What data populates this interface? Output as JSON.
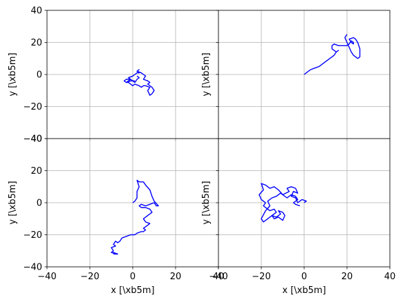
{
  "chart_data": [
    {
      "type": "line",
      "position": "top-left",
      "xlabel": "",
      "ylabel": "y [\\xb5m]",
      "xlim": [
        -40,
        40
      ],
      "ylim": [
        -40,
        40
      ],
      "yticks": [
        "−40",
        "−20",
        "0",
        "20",
        "40"
      ],
      "grid": true,
      "series": [
        {
          "color": "#0000ff",
          "x": [
            1,
            -1,
            -3,
            -1,
            -2,
            0,
            1,
            2,
            3,
            2,
            3,
            2,
            4,
            5,
            6,
            5,
            7,
            8,
            7,
            8,
            9,
            10,
            9,
            8,
            7,
            8,
            6,
            5,
            4,
            3,
            1,
            0,
            -1,
            -2,
            -3,
            -4,
            -3,
            -1,
            0,
            1,
            2,
            3,
            2
          ],
          "y": [
            -4,
            -4,
            -5,
            -3,
            -2,
            -1,
            0,
            1,
            1,
            2,
            3,
            2,
            1,
            0,
            -1,
            -3,
            -4,
            -5,
            -6,
            -7,
            -8,
            -10,
            -12,
            -13,
            -10,
            -8,
            -7,
            -7,
            -8,
            -7,
            -6,
            -7,
            -6,
            -5,
            -5,
            -4,
            -3,
            -3,
            -4,
            -5,
            -3,
            -2,
            -1
          ]
        }
      ]
    },
    {
      "type": "line",
      "position": "top-right",
      "xlabel": "",
      "ylabel": "y [\\xb5m]",
      "xlim": [
        -40,
        40
      ],
      "ylim": [
        -40,
        40
      ],
      "grid": true,
      "series": [
        {
          "color": "#0000ff",
          "x": [
            0,
            1,
            2,
            3,
            5,
            7,
            9,
            11,
            13,
            14,
            15,
            16,
            15,
            14,
            13,
            13,
            14,
            16,
            18,
            20,
            21,
            22,
            23,
            23,
            22,
            21,
            23,
            24,
            25,
            26,
            26,
            25,
            24,
            23,
            22,
            21,
            20,
            19,
            20
          ],
          "y": [
            0,
            1,
            2,
            3,
            4,
            5,
            7,
            9,
            11,
            12,
            14,
            15,
            14,
            15,
            16,
            18,
            19,
            18,
            18,
            18,
            19,
            21,
            20,
            19,
            20,
            22,
            23,
            22,
            20,
            16,
            11,
            10,
            11,
            12,
            14,
            17,
            20,
            23,
            25
          ]
        }
      ]
    },
    {
      "type": "line",
      "position": "bottom-left",
      "xlabel": "x [\\xb5m]",
      "ylabel": "y [\\xb5m]",
      "xlim": [
        -40,
        40
      ],
      "ylim": [
        -40,
        40
      ],
      "xticks": [
        "−40",
        "−20",
        "0",
        "20",
        "40"
      ],
      "yticks": [
        "−40",
        "−20",
        "0",
        "20",
        "40"
      ],
      "grid": true,
      "series": [
        {
          "color": "#0000ff",
          "x": [
            0,
            1,
            2,
            2,
            3,
            2,
            3,
            5,
            6,
            8,
            9,
            10,
            12,
            11,
            10,
            8,
            6,
            4,
            3,
            4,
            6,
            8,
            9,
            7,
            5,
            6,
            8,
            7,
            5,
            6,
            5,
            4,
            2,
            1,
            -1,
            -3,
            -5,
            -6,
            -7,
            -8,
            -9,
            -8,
            -10,
            -9,
            -10,
            -8,
            -9,
            -7,
            -9
          ],
          "y": [
            0,
            1,
            3,
            7,
            10,
            14,
            13,
            13,
            11,
            8,
            4,
            1,
            -2,
            -2,
            0,
            -1,
            -2,
            -1,
            -2,
            -3,
            -3,
            -4,
            -6,
            -8,
            -10,
            -12,
            -13,
            -14,
            -16,
            -17,
            -18,
            -18,
            -19,
            -20,
            -20,
            -21,
            -22,
            -24,
            -25,
            -24,
            -26,
            -27,
            -28,
            -30,
            -31,
            -32,
            -31,
            -32,
            -32
          ]
        }
      ]
    },
    {
      "type": "line",
      "position": "bottom-right",
      "xlabel": "x [\\xb5m]",
      "ylabel": "y [\\xb5m]",
      "xlim": [
        -40,
        40
      ],
      "ylim": [
        -40,
        40
      ],
      "xticks": [
        "−40",
        "−20",
        "0",
        "20",
        "40"
      ],
      "grid": true,
      "series": [
        {
          "color": "#0000ff",
          "x": [
            0,
            1,
            -1,
            -3,
            -4,
            -6,
            -5,
            -3,
            -4,
            -6,
            -8,
            -7,
            -10,
            -12,
            -14,
            -16,
            -18,
            -20,
            -19,
            -21,
            -20,
            -18,
            -19,
            -17,
            -16,
            -14,
            -13,
            -15,
            -14,
            -12,
            -10,
            -9,
            -10,
            -12,
            -11,
            -13,
            -15,
            -17,
            -19,
            -20,
            -18,
            -16,
            -17,
            -15,
            -13,
            -11,
            -10,
            -8,
            -6,
            -4,
            -3,
            -5,
            -4,
            -2
          ],
          "y": [
            0,
            1,
            2,
            0,
            3,
            4,
            7,
            6,
            9,
            10,
            9,
            7,
            5,
            8,
            10,
            9,
            11,
            12,
            8,
            5,
            2,
            0,
            -2,
            -4,
            -5,
            -4,
            -6,
            -8,
            -10,
            -9,
            -11,
            -8,
            -6,
            -5,
            -7,
            -9,
            -8,
            -10,
            -12,
            -10,
            -5,
            -2,
            1,
            3,
            4,
            6,
            5,
            3,
            5,
            4,
            2,
            0,
            -1,
            -2
          ]
        }
      ]
    }
  ]
}
